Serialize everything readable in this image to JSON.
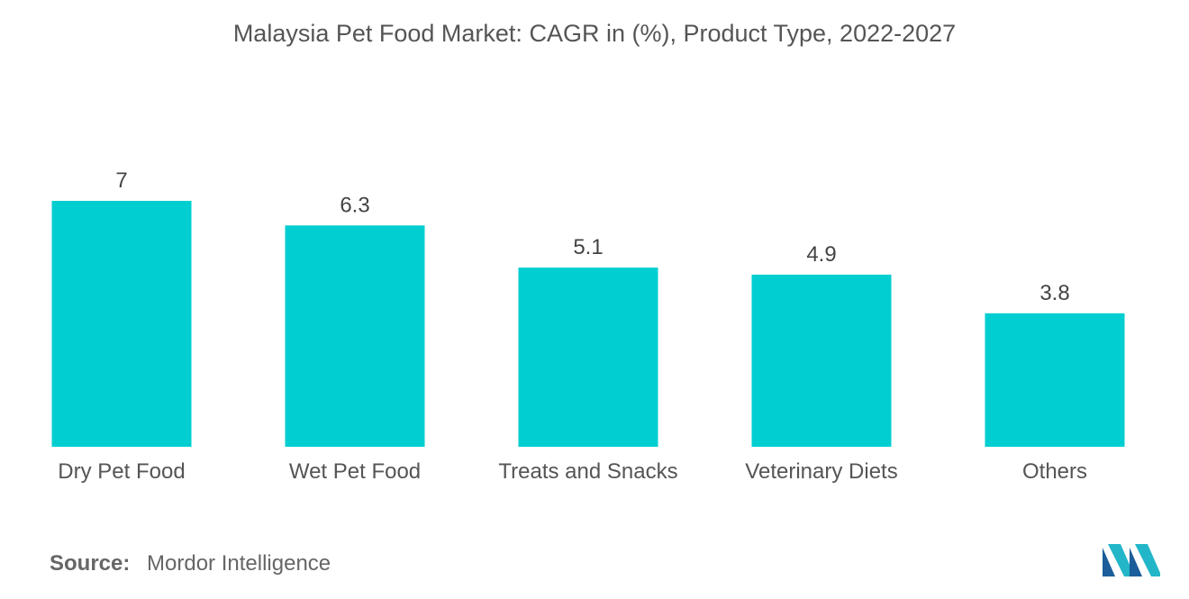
{
  "chart_data": {
    "type": "bar",
    "title": "Malaysia Pet Food Market: CAGR in (%), Product Type, 2022-2027",
    "categories": [
      "Dry Pet Food",
      "Wet Pet Food",
      "Treats and Snacks",
      "Veterinary Diets",
      "Others"
    ],
    "values": [
      7,
      6.3,
      5.1,
      4.9,
      3.8
    ],
    "data_labels": [
      "7",
      "6.3",
      "5.1",
      "4.9",
      "3.8"
    ],
    "xlabel": "",
    "ylabel": "",
    "ylim": [
      0,
      7
    ],
    "grid": false,
    "legend": "none",
    "bar_color": "#00CED1"
  },
  "source": {
    "label": "Source:",
    "text": "Mordor Intelligence"
  },
  "logo": {
    "icon": "mordor-intelligence-logo",
    "colors": [
      "#1B5E9A",
      "#22B6C8"
    ]
  }
}
